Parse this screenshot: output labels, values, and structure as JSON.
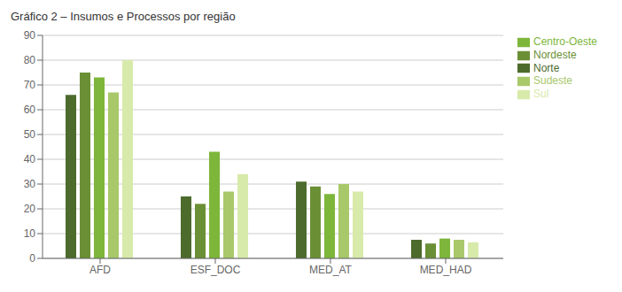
{
  "chart_data": {
    "type": "bar",
    "title": "Gráfico 2 – Insumos e Processos por região",
    "categories": [
      "AFD",
      "ESF_DOC",
      "MED_AT",
      "MED_HAD"
    ],
    "series": [
      {
        "name": "Norte",
        "color": "#4d6b2c",
        "values": [
          66,
          25,
          31,
          7.5
        ]
      },
      {
        "name": "Nordeste",
        "color": "#6b8f35",
        "values": [
          75,
          22,
          29,
          6
        ]
      },
      {
        "name": "Centro-Oeste",
        "color": "#7db63a",
        "values": [
          73,
          43,
          26,
          8
        ]
      },
      {
        "name": "Sudeste",
        "color": "#a8c86a",
        "values": [
          67,
          27,
          30,
          7.5
        ]
      },
      {
        "name": "Sul",
        "color": "#d8eaaa",
        "values": [
          80,
          34,
          27,
          6.5
        ]
      }
    ],
    "ylim": [
      0,
      90
    ],
    "yticks": [
      0,
      10,
      20,
      30,
      40,
      50,
      60,
      70,
      80,
      90
    ],
    "grid": true,
    "legend": "right"
  }
}
